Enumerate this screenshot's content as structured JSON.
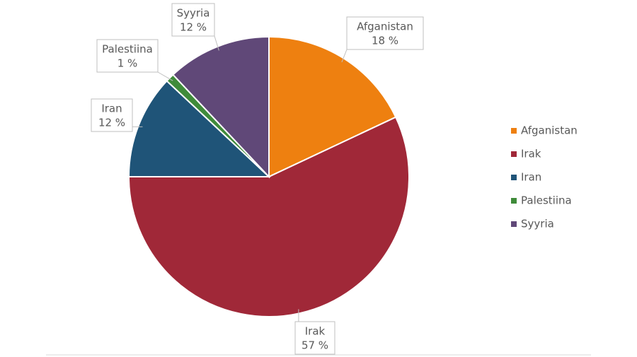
{
  "chart_data": {
    "type": "pie",
    "categories": [
      "Afganistan",
      "Irak",
      "Iran",
      "Palestiina",
      "Syyria"
    ],
    "values": [
      18,
      57,
      12,
      1,
      12
    ],
    "value_labels": [
      "18 %",
      "57 %",
      "12 %",
      "1 %",
      "12 %"
    ],
    "colors": [
      "#ee8010",
      "#a02838",
      "#1f5478",
      "#3f8b3a",
      "#604878"
    ],
    "legend": "right"
  }
}
